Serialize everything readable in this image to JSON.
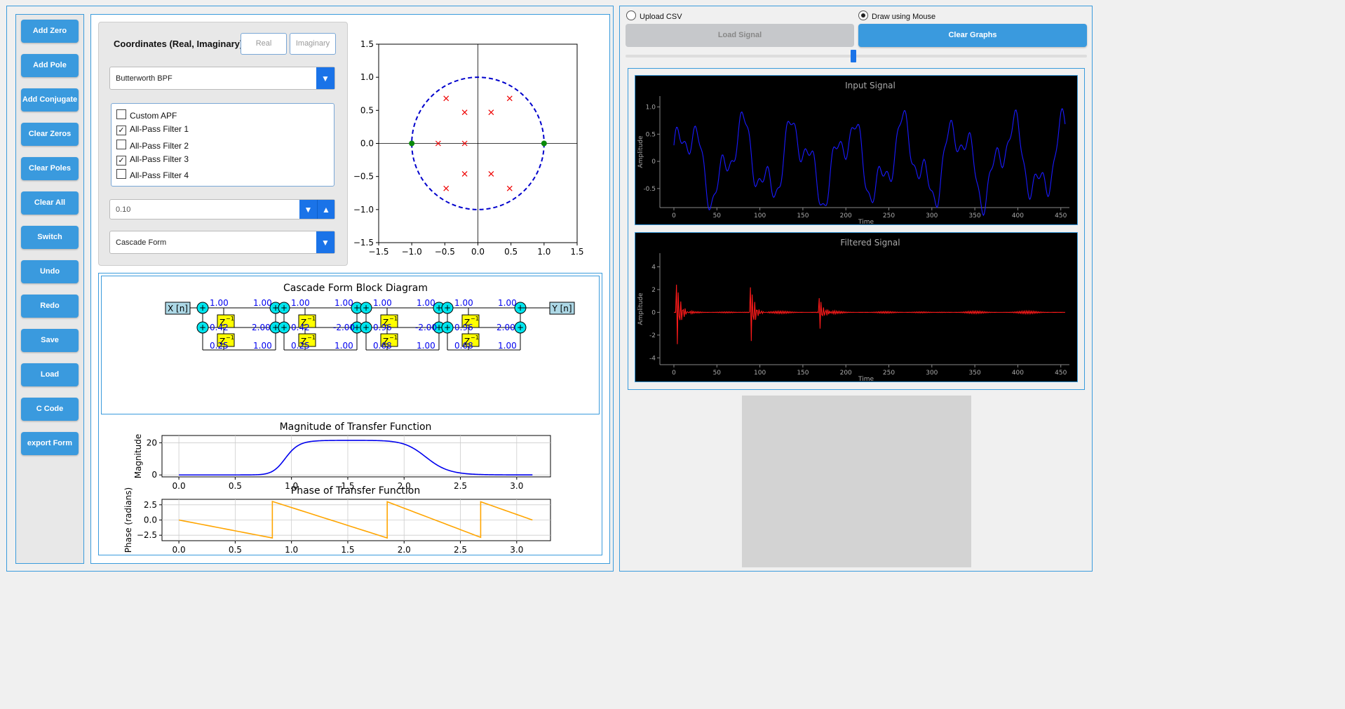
{
  "sidebar": {
    "buttons": [
      "Add Zero",
      "Add Pole",
      "Add Conjugate",
      "Clear Zeros",
      "Clear Poles",
      "Clear All",
      "Switch",
      "Undo",
      "Redo",
      "Save",
      "Load",
      "C Code",
      "export Form"
    ]
  },
  "coordinates": {
    "label": "Coordinates (Real, Imaginary):",
    "real_placeholder": "Real",
    "imag_placeholder": "Imaginary"
  },
  "filter_type": {
    "selected": "Butterworth BPF"
  },
  "apf_list": [
    {
      "label": "Custom APF",
      "checked": false
    },
    {
      "label": "All-Pass Filter 1",
      "checked": true
    },
    {
      "label": "All-Pass Filter 2",
      "checked": false
    },
    {
      "label": "All-Pass Filter 3",
      "checked": true
    },
    {
      "label": "All-Pass Filter 4",
      "checked": false
    }
  ],
  "apf_value": {
    "value": "0.10"
  },
  "form_select": {
    "selected": "Cascade Form"
  },
  "zplane": {
    "xticks": [
      "−1.5",
      "−1.0",
      "−0.5",
      "0.0",
      "0.5",
      "1.0",
      "1.5"
    ],
    "yticks": [
      "1.5",
      "1.0",
      "0.5",
      "0.0",
      "−0.5",
      "−1.0",
      "−1.5"
    ],
    "poles": [
      [
        -0.48,
        0.68
      ],
      [
        -0.2,
        0.47
      ],
      [
        0.2,
        0.47
      ],
      [
        0.48,
        0.68
      ],
      [
        -0.6,
        0.0
      ],
      [
        -0.2,
        0.0
      ],
      [
        -0.2,
        -0.46
      ],
      [
        0.2,
        -0.46
      ],
      [
        -0.48,
        -0.68
      ],
      [
        0.48,
        -0.68
      ]
    ],
    "zeros": [
      [
        -1.0,
        0.0
      ],
      [
        1.0,
        0.0
      ]
    ]
  },
  "block_diagram": {
    "title": "Cascade Form Block Diagram",
    "input_label": "X [n]",
    "output_label": "Y [n]",
    "delay_label": "Z",
    "delay_sup": "−1",
    "sections": [
      {
        "b0": "1.00",
        "a0": "1.00",
        "b1": "0.42",
        "a1": "2.00",
        "b2": "0.25",
        "a2": "1.00"
      },
      {
        "b0": "1.00",
        "a0": "1.00",
        "b1": "0.42",
        "a1": "-2.00",
        "b2": "0.25",
        "a2": "1.00"
      },
      {
        "b0": "1.00",
        "a0": "1.00",
        "b1": "0.96",
        "a1": "-2.00",
        "b2": "0.68",
        "a2": "1.00"
      },
      {
        "b0": "1.00",
        "a0": "1.00",
        "b1": "0.96",
        "a1": "2.00",
        "b2": "0.68",
        "a2": "1.00"
      }
    ]
  },
  "magnitude_plot": {
    "title": "Magnitude of Transfer Function",
    "ylabel": "Magnitude",
    "xticks": [
      "0.0",
      "0.5",
      "1.0",
      "1.5",
      "2.0",
      "2.5",
      "3.0"
    ],
    "yticks": [
      "20",
      "0"
    ],
    "color": "#0000ee"
  },
  "phase_plot": {
    "title": "Phase of Transfer Function",
    "ylabel": "Phase (radians)",
    "xticks": [
      "0.0",
      "0.5",
      "1.0",
      "1.5",
      "2.0",
      "2.5",
      "3.0"
    ],
    "yticks": [
      "2.5",
      "0.0",
      "−2.5"
    ],
    "color": "#ffa500"
  },
  "signal_source": {
    "option_csv": "Upload CSV",
    "option_mouse": "Draw using Mouse",
    "selected": "mouse"
  },
  "signal_buttons": {
    "load": "Load Signal",
    "clear": "Clear Graphs"
  },
  "speed_slider": {
    "value": 0.5
  },
  "input_signal": {
    "title": "Input Signal",
    "ylabel": "Amplitude",
    "xlabel": "Time",
    "xticks": [
      "0",
      "50",
      "100",
      "150",
      "200",
      "250",
      "300",
      "350",
      "400",
      "450"
    ],
    "yticks": [
      "1.0",
      "0.5",
      "0",
      "-0.5"
    ],
    "color": "#1a1aff"
  },
  "filtered_signal": {
    "title": "Filtered Signal",
    "ylabel": "Amplitude",
    "xlabel": "Time",
    "xticks": [
      "0",
      "50",
      "100",
      "150",
      "200",
      "250",
      "300",
      "350",
      "400",
      "450"
    ],
    "yticks": [
      "4",
      "2",
      "0",
      "-2",
      "-4"
    ],
    "color": "#ff1a1a"
  }
}
